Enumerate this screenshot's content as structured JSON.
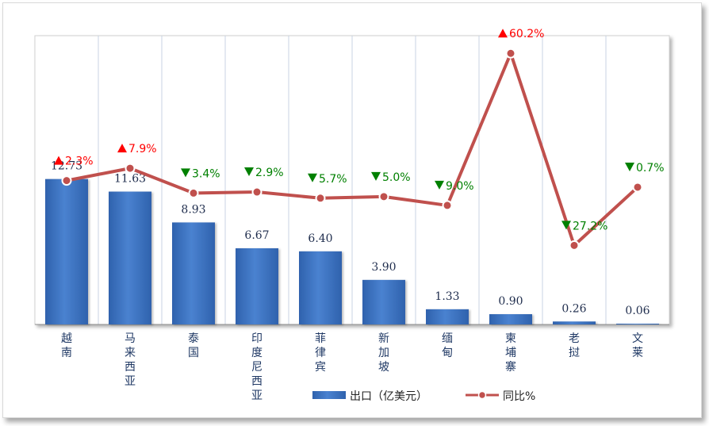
{
  "chart_data": {
    "type": "bar",
    "categories": [
      "越南",
      "马来西亚",
      "泰国",
      "印度尼西亚",
      "菲律宾",
      "新加坡",
      "缅甸",
      "柬埔寨",
      "老挝",
      "文莱"
    ],
    "series": [
      {
        "name": "出口（亿美元）",
        "type": "bar",
        "values": [
          12.73,
          11.63,
          8.93,
          6.67,
          6.4,
          3.9,
          1.33,
          0.9,
          0.26,
          0.06
        ]
      },
      {
        "name": "同比%",
        "type": "line",
        "values": [
          2.3,
          7.9,
          -3.4,
          -2.9,
          -5.7,
          -5.0,
          -9.0,
          60.2,
          -27.2,
          -0.7
        ]
      }
    ],
    "bar_labels": [
      "12.73",
      "11.63",
      "8.93",
      "6.67",
      "6.40",
      "3.90",
      "1.33",
      "0.90",
      "0.26",
      "0.06"
    ],
    "line_labels": [
      "2.3%",
      "7.9%",
      "3.4%",
      "2.9%",
      "5.7%",
      "5.0%",
      "9.0%",
      "60.2%",
      "27.2%",
      "0.7%"
    ],
    "line_directions": [
      "up",
      "up",
      "down",
      "down",
      "down",
      "down",
      "down",
      "up",
      "down",
      "down"
    ],
    "legend": [
      "出口（亿美元）",
      "同比%"
    ],
    "legend_position": "bottom",
    "grid": "vertical",
    "colors": {
      "bar": "#4178c7",
      "bar_dark": "#2c5ea8",
      "line": "#c0504d",
      "up": "#ff0000",
      "down": "#008000",
      "grid": "#c9d3e3"
    }
  }
}
